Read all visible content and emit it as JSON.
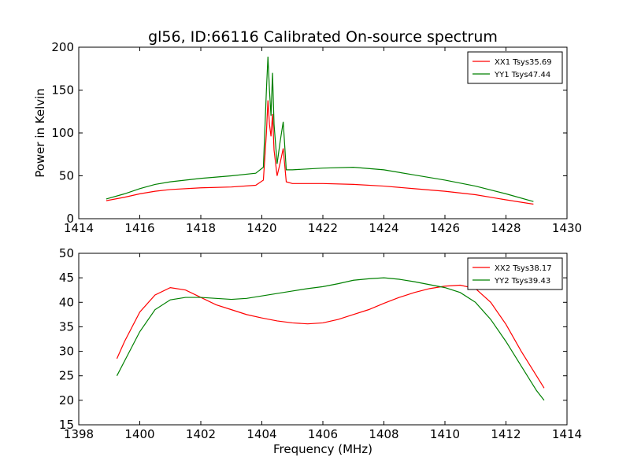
{
  "figure": {
    "title": "gl56, ID:66116 Calibrated On-source spectrum"
  },
  "chart_data": [
    {
      "type": "line",
      "title": "gl56, ID:66116 Calibrated On-source spectrum",
      "xlabel": "",
      "ylabel": "Power in Kelvin",
      "xlim": [
        1414,
        1430
      ],
      "ylim": [
        0,
        200
      ],
      "xticks": [
        "1414",
        "1416",
        "1418",
        "1420",
        "1422",
        "1424",
        "1426",
        "1428",
        "1430"
      ],
      "yticks": [
        "0",
        "50",
        "100",
        "150",
        "200"
      ],
      "grid": false,
      "legend_position": "top-right",
      "series": [
        {
          "name": "XX1 Tsys35.69",
          "color": "#ff0000",
          "x": [
            1414.9,
            1415.5,
            1416.0,
            1416.5,
            1417.0,
            1418.0,
            1419.0,
            1419.8,
            1420.05,
            1420.15,
            1420.2,
            1420.25,
            1420.3,
            1420.35,
            1420.4,
            1420.5,
            1420.6,
            1420.7,
            1420.8,
            1421.0,
            1422.0,
            1423.0,
            1424.0,
            1425.0,
            1426.0,
            1427.0,
            1428.0,
            1428.9
          ],
          "values": [
            21,
            25,
            29,
            32,
            34,
            36,
            37,
            39,
            45,
            100,
            138,
            110,
            96,
            122,
            80,
            50,
            65,
            82,
            43,
            41,
            41,
            40,
            38,
            35,
            32,
            28,
            22,
            17
          ]
        },
        {
          "name": "YY1 Tsys47.44",
          "color": "#008000",
          "x": [
            1414.9,
            1415.5,
            1416.0,
            1416.5,
            1417.0,
            1418.0,
            1419.0,
            1419.8,
            1420.05,
            1420.15,
            1420.2,
            1420.25,
            1420.3,
            1420.35,
            1420.4,
            1420.5,
            1420.6,
            1420.7,
            1420.8,
            1421.0,
            1422.0,
            1423.0,
            1424.0,
            1425.0,
            1426.0,
            1427.0,
            1428.0,
            1428.9
          ],
          "values": [
            23,
            29,
            35,
            40,
            43,
            47,
            50,
            53,
            60,
            150,
            189,
            150,
            120,
            170,
            110,
            64,
            90,
            113,
            57,
            57,
            59,
            60,
            57,
            51,
            45,
            38,
            29,
            20
          ]
        }
      ]
    },
    {
      "type": "line",
      "title": "",
      "xlabel": "Frequency (MHz)",
      "ylabel": "",
      "xlim": [
        1398,
        1414
      ],
      "ylim": [
        15,
        50
      ],
      "xticks": [
        "1398",
        "1400",
        "1402",
        "1404",
        "1406",
        "1408",
        "1410",
        "1412",
        "1414"
      ],
      "yticks": [
        "15",
        "20",
        "25",
        "30",
        "35",
        "40",
        "45",
        "50"
      ],
      "grid": false,
      "legend_position": "top-right",
      "series": [
        {
          "name": "XX2 Tsys38.17",
          "color": "#ff0000",
          "x": [
            1399.25,
            1399.5,
            1400.0,
            1400.5,
            1401.0,
            1401.5,
            1402.0,
            1402.5,
            1403.0,
            1403.5,
            1404.0,
            1404.5,
            1405.0,
            1405.5,
            1406.0,
            1406.5,
            1407.0,
            1407.5,
            1408.0,
            1408.5,
            1409.0,
            1409.5,
            1410.0,
            1410.5,
            1411.0,
            1411.5,
            1412.0,
            1412.5,
            1413.0,
            1413.25
          ],
          "values": [
            28.5,
            32,
            38,
            41.5,
            43,
            42.5,
            41,
            39.5,
            38.5,
            37.5,
            36.8,
            36.2,
            35.8,
            35.6,
            35.8,
            36.5,
            37.5,
            38.5,
            39.8,
            41,
            42,
            42.8,
            43.3,
            43.5,
            42.8,
            40,
            35.5,
            30,
            25,
            22.5
          ]
        },
        {
          "name": "YY2 Tsys39.43",
          "color": "#008000",
          "x": [
            1399.25,
            1399.5,
            1400.0,
            1400.5,
            1401.0,
            1401.5,
            1402.0,
            1402.5,
            1403.0,
            1403.5,
            1404.0,
            1404.5,
            1405.0,
            1405.5,
            1406.0,
            1406.5,
            1407.0,
            1407.5,
            1408.0,
            1408.5,
            1409.0,
            1409.5,
            1410.0,
            1410.5,
            1411.0,
            1411.5,
            1412.0,
            1412.5,
            1413.0,
            1413.25
          ],
          "values": [
            25,
            28,
            34,
            38.5,
            40.5,
            41,
            41,
            40.8,
            40.6,
            40.8,
            41.3,
            41.8,
            42.3,
            42.8,
            43.2,
            43.8,
            44.5,
            44.8,
            45,
            44.7,
            44.2,
            43.6,
            43,
            42,
            40,
            36.5,
            32,
            27,
            22,
            20
          ]
        }
      ]
    }
  ]
}
